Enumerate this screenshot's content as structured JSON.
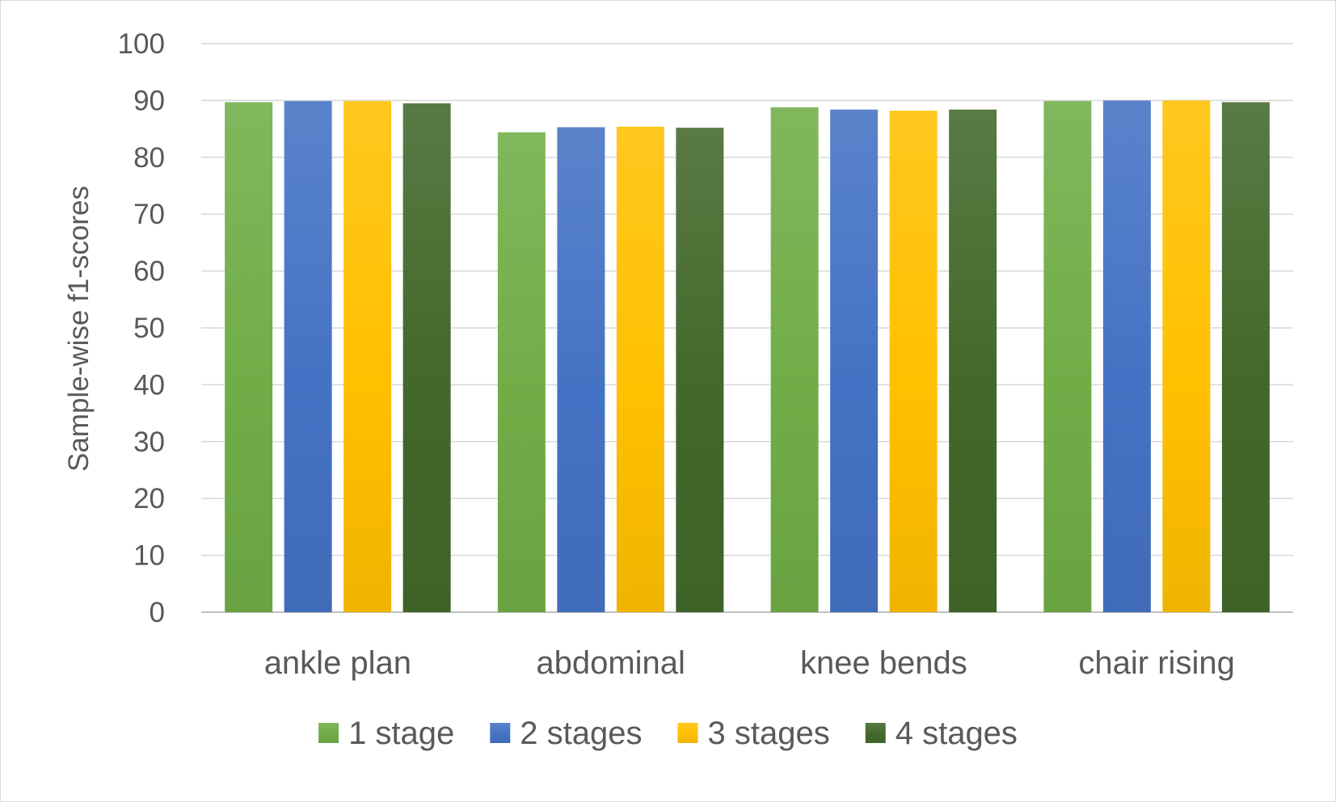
{
  "chart_data": {
    "type": "bar",
    "title": "",
    "xlabel": "",
    "ylabel": "Sample-wise f1-scores",
    "ylim": [
      0,
      100
    ],
    "yticks": [
      0,
      10,
      20,
      30,
      40,
      50,
      60,
      70,
      80,
      90,
      100
    ],
    "grid": true,
    "legend_position": "bottom",
    "categories": [
      "ankle plan",
      "abdominal",
      "knee bends",
      "chair rising"
    ],
    "series": [
      {
        "name": "1 stage",
        "color": "#70ad47",
        "values": [
          89.7,
          84.4,
          88.8,
          89.9
        ]
      },
      {
        "name": "2 stages",
        "color": "#4472c4",
        "values": [
          89.9,
          85.3,
          88.4,
          90.0
        ]
      },
      {
        "name": "3 stages",
        "color": "#ffc000",
        "values": [
          89.9,
          85.4,
          88.2,
          90.0
        ]
      },
      {
        "name": "4 stages",
        "color": "#43682b",
        "values": [
          89.5,
          85.2,
          88.4,
          89.7
        ]
      }
    ]
  }
}
